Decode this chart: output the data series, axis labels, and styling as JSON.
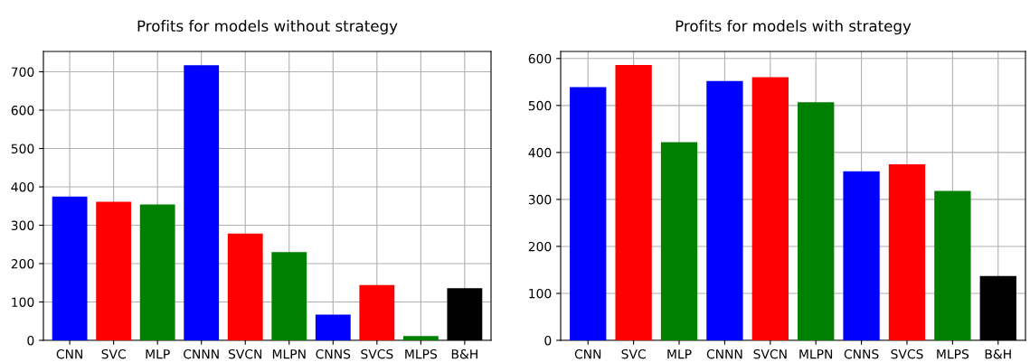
{
  "chart_data": [
    {
      "type": "bar",
      "title": "Profits for models without strategy",
      "categories": [
        "CNN",
        "SVC",
        "MLP",
        "CNNN",
        "SVCN",
        "MLPN",
        "CNNS",
        "SVCS",
        "MLPS",
        "B&H"
      ],
      "values": [
        375,
        361,
        354,
        717,
        278,
        230,
        67,
        144,
        11,
        136
      ],
      "colors": [
        "#0000ff",
        "#ff0000",
        "#008000",
        "#0000ff",
        "#ff0000",
        "#008000",
        "#0000ff",
        "#ff0000",
        "#008000",
        "#000000"
      ],
      "ylim": [
        0,
        753
      ],
      "yticks": [
        0,
        100,
        200,
        300,
        400,
        500,
        600,
        700
      ],
      "grid": true
    },
    {
      "type": "bar",
      "title": "Profits for models with strategy",
      "categories": [
        "CNN",
        "SVC",
        "MLP",
        "CNNN",
        "SVCN",
        "MLPN",
        "CNNS",
        "SVCS",
        "MLPS",
        "B&H"
      ],
      "values": [
        539,
        586,
        422,
        552,
        560,
        507,
        360,
        375,
        318,
        137
      ],
      "colors": [
        "#0000ff",
        "#ff0000",
        "#008000",
        "#0000ff",
        "#ff0000",
        "#008000",
        "#0000ff",
        "#ff0000",
        "#008000",
        "#000000"
      ],
      "ylim": [
        0,
        615
      ],
      "yticks": [
        0,
        100,
        200,
        300,
        400,
        500,
        600
      ],
      "grid": true
    }
  ]
}
